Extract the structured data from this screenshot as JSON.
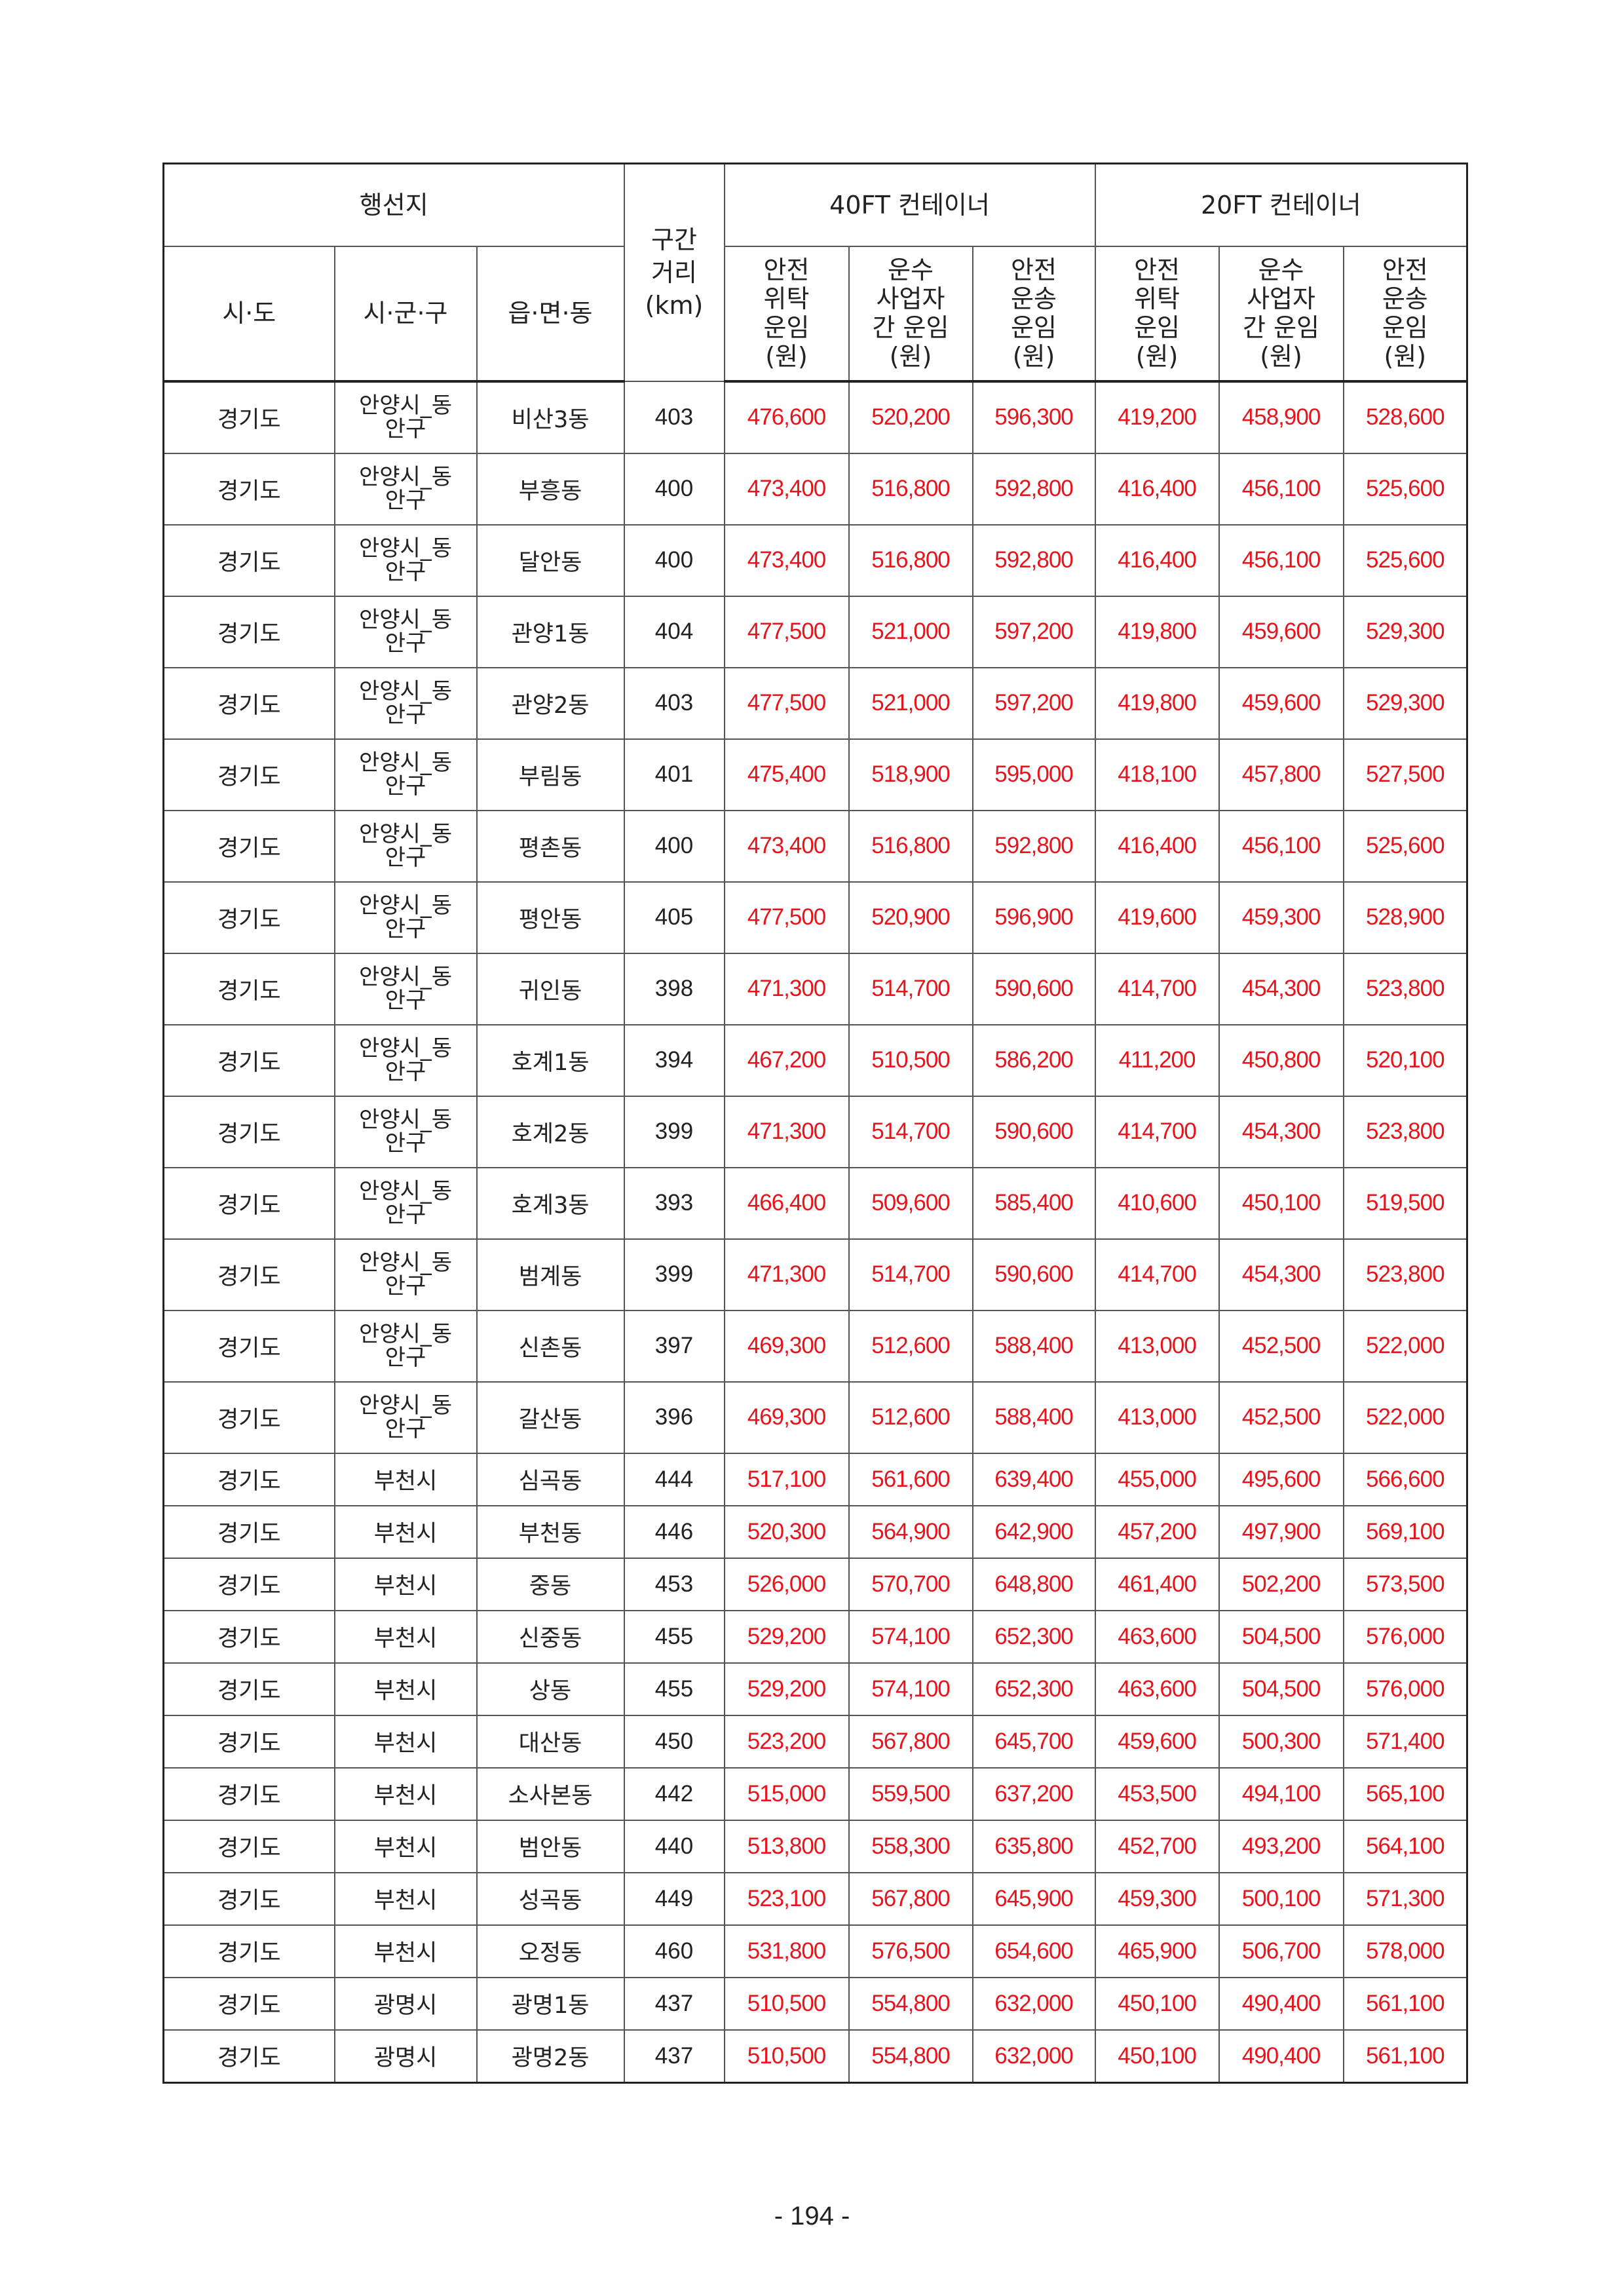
{
  "header": {
    "destination": "행선지",
    "distance": [
      "구간",
      "거리",
      "(km)"
    ],
    "group40": "40FT 컨테이너",
    "group20": "20FT 컨테이너",
    "sido": "시·도",
    "sigungu": "시·군·구",
    "eupmyeondong": "읍·면·동",
    "fare_cols": [
      [
        "안전",
        "위탁",
        "운임",
        "(원)"
      ],
      [
        "운수",
        "사업자",
        "간 운임",
        "(원)"
      ],
      [
        "안전",
        "운송",
        "운임",
        "(원)"
      ],
      [
        "안전",
        "위탁",
        "운임",
        "(원)"
      ],
      [
        "운수",
        "사업자",
        "간 운임",
        "(원)"
      ],
      [
        "안전",
        "운송",
        "운임",
        "(원)"
      ]
    ]
  },
  "rows": [
    [
      "경기도",
      "안양시_동안구",
      "비산3동",
      "403",
      "476,600",
      "520,200",
      "596,300",
      "419,200",
      "458,900",
      "528,600"
    ],
    [
      "경기도",
      "안양시_동안구",
      "부흥동",
      "400",
      "473,400",
      "516,800",
      "592,800",
      "416,400",
      "456,100",
      "525,600"
    ],
    [
      "경기도",
      "안양시_동안구",
      "달안동",
      "400",
      "473,400",
      "516,800",
      "592,800",
      "416,400",
      "456,100",
      "525,600"
    ],
    [
      "경기도",
      "안양시_동안구",
      "관양1동",
      "404",
      "477,500",
      "521,000",
      "597,200",
      "419,800",
      "459,600",
      "529,300"
    ],
    [
      "경기도",
      "안양시_동안구",
      "관양2동",
      "403",
      "477,500",
      "521,000",
      "597,200",
      "419,800",
      "459,600",
      "529,300"
    ],
    [
      "경기도",
      "안양시_동안구",
      "부림동",
      "401",
      "475,400",
      "518,900",
      "595,000",
      "418,100",
      "457,800",
      "527,500"
    ],
    [
      "경기도",
      "안양시_동안구",
      "평촌동",
      "400",
      "473,400",
      "516,800",
      "592,800",
      "416,400",
      "456,100",
      "525,600"
    ],
    [
      "경기도",
      "안양시_동안구",
      "평안동",
      "405",
      "477,500",
      "520,900",
      "596,900",
      "419,600",
      "459,300",
      "528,900"
    ],
    [
      "경기도",
      "안양시_동안구",
      "귀인동",
      "398",
      "471,300",
      "514,700",
      "590,600",
      "414,700",
      "454,300",
      "523,800"
    ],
    [
      "경기도",
      "안양시_동안구",
      "호계1동",
      "394",
      "467,200",
      "510,500",
      "586,200",
      "411,200",
      "450,800",
      "520,100"
    ],
    [
      "경기도",
      "안양시_동안구",
      "호계2동",
      "399",
      "471,300",
      "514,700",
      "590,600",
      "414,700",
      "454,300",
      "523,800"
    ],
    [
      "경기도",
      "안양시_동안구",
      "호계3동",
      "393",
      "466,400",
      "509,600",
      "585,400",
      "410,600",
      "450,100",
      "519,500"
    ],
    [
      "경기도",
      "안양시_동안구",
      "범계동",
      "399",
      "471,300",
      "514,700",
      "590,600",
      "414,700",
      "454,300",
      "523,800"
    ],
    [
      "경기도",
      "안양시_동안구",
      "신촌동",
      "397",
      "469,300",
      "512,600",
      "588,400",
      "413,000",
      "452,500",
      "522,000"
    ],
    [
      "경기도",
      "안양시_동안구",
      "갈산동",
      "396",
      "469,300",
      "512,600",
      "588,400",
      "413,000",
      "452,500",
      "522,000"
    ],
    [
      "경기도",
      "부천시",
      "심곡동",
      "444",
      "517,100",
      "561,600",
      "639,400",
      "455,000",
      "495,600",
      "566,600"
    ],
    [
      "경기도",
      "부천시",
      "부천동",
      "446",
      "520,300",
      "564,900",
      "642,900",
      "457,200",
      "497,900",
      "569,100"
    ],
    [
      "경기도",
      "부천시",
      "중동",
      "453",
      "526,000",
      "570,700",
      "648,800",
      "461,400",
      "502,200",
      "573,500"
    ],
    [
      "경기도",
      "부천시",
      "신중동",
      "455",
      "529,200",
      "574,100",
      "652,300",
      "463,600",
      "504,500",
      "576,000"
    ],
    [
      "경기도",
      "부천시",
      "상동",
      "455",
      "529,200",
      "574,100",
      "652,300",
      "463,600",
      "504,500",
      "576,000"
    ],
    [
      "경기도",
      "부천시",
      "대산동",
      "450",
      "523,200",
      "567,800",
      "645,700",
      "459,600",
      "500,300",
      "571,400"
    ],
    [
      "경기도",
      "부천시",
      "소사본동",
      "442",
      "515,000",
      "559,500",
      "637,200",
      "453,500",
      "494,100",
      "565,100"
    ],
    [
      "경기도",
      "부천시",
      "범안동",
      "440",
      "513,800",
      "558,300",
      "635,800",
      "452,700",
      "493,200",
      "564,100"
    ],
    [
      "경기도",
      "부천시",
      "성곡동",
      "449",
      "523,100",
      "567,800",
      "645,900",
      "459,300",
      "500,100",
      "571,300"
    ],
    [
      "경기도",
      "부천시",
      "오정동",
      "460",
      "531,800",
      "576,500",
      "654,600",
      "465,900",
      "506,700",
      "578,000"
    ],
    [
      "경기도",
      "광명시",
      "광명1동",
      "437",
      "510,500",
      "554,800",
      "632,000",
      "450,100",
      "490,400",
      "561,100"
    ],
    [
      "경기도",
      "광명시",
      "광명2동",
      "437",
      "510,500",
      "554,800",
      "632,000",
      "450,100",
      "490,400",
      "561,100"
    ]
  ],
  "page_number": "- 194 -",
  "colors": {
    "fare_text": "#e8141c",
    "text": "#222222",
    "border": "#555555"
  }
}
